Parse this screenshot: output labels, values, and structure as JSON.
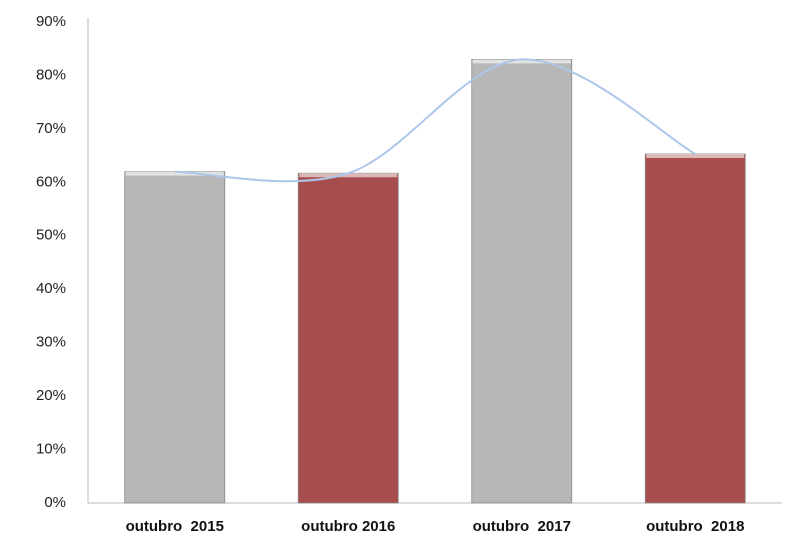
{
  "chart_data": {
    "type": "bar",
    "categories": [
      "outubro  2015",
      "outubro 2016",
      "outubro  2017",
      "outubro  2018"
    ],
    "values": [
      62,
      61.7,
      83,
      65.3
    ],
    "colors": [
      "#b7b7b7",
      "#a64d4d",
      "#b7b7b7",
      "#a64d4d"
    ],
    "line": true,
    "line_color": "#adc6ea",
    "ylim": [
      0,
      90
    ],
    "yticks": [
      {
        "value": 0,
        "label": "0%"
      },
      {
        "value": 10,
        "label": "10%"
      },
      {
        "value": 20,
        "label": "20%"
      },
      {
        "value": 30,
        "label": "30%"
      },
      {
        "value": 40,
        "label": "40%"
      },
      {
        "value": 50,
        "label": "50%"
      },
      {
        "value": 60,
        "label": "60%"
      },
      {
        "value": 70,
        "label": "70%"
      },
      {
        "value": 80,
        "label": "80%"
      },
      {
        "value": 90,
        "label": "90%"
      }
    ],
    "grid": false
  }
}
